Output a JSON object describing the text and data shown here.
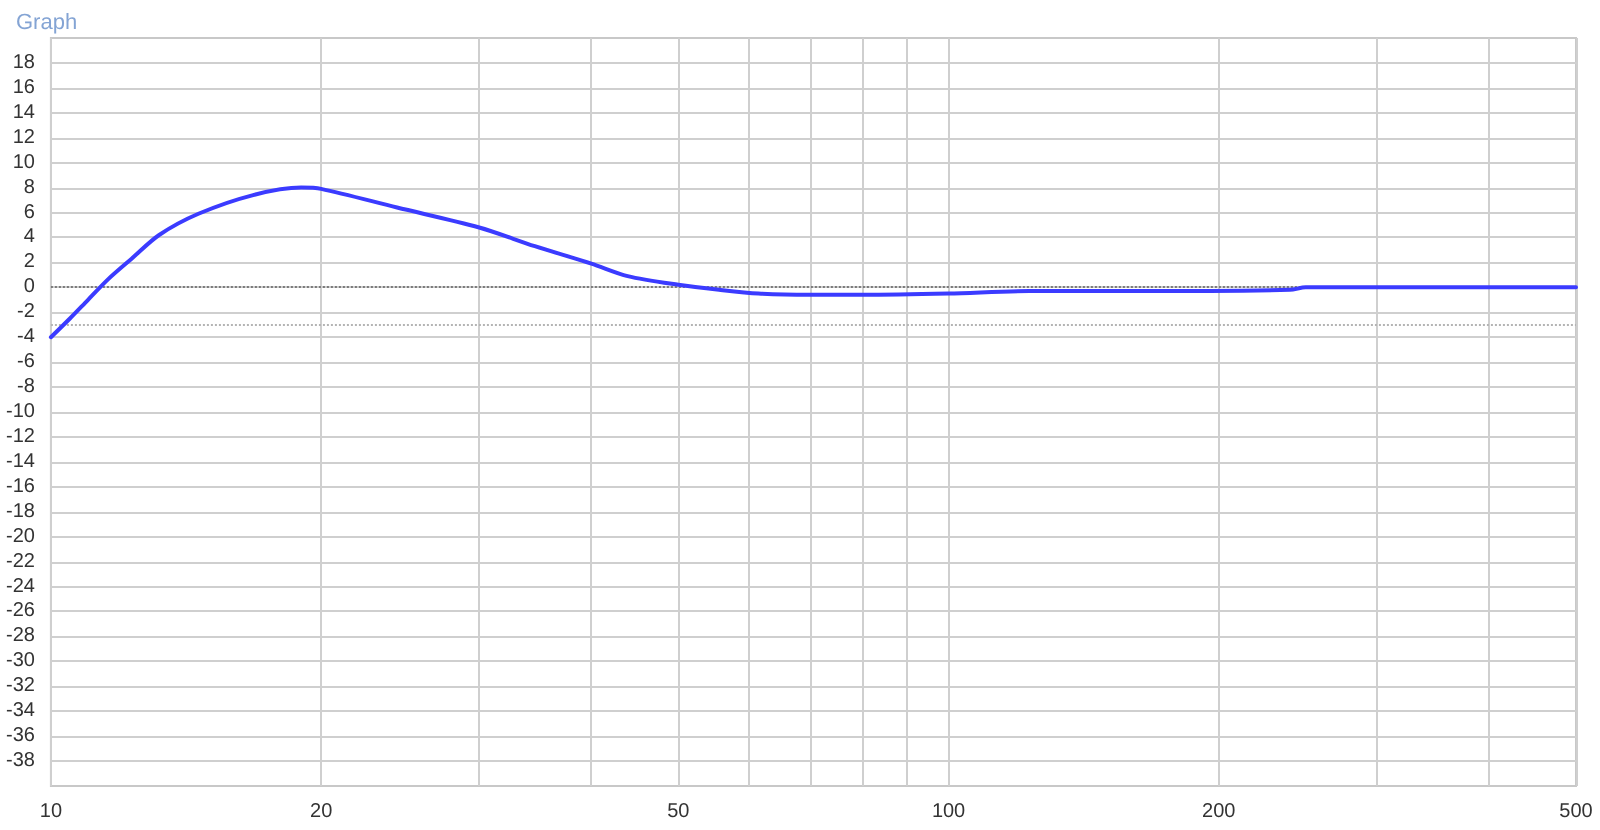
{
  "chart_data": {
    "type": "line",
    "title": "Graph",
    "series": [
      {
        "color": "#3b3bff",
        "x": [
          10,
          10.5,
          11,
          11.6,
          12.3,
          13.2,
          14.6,
          16.8,
          19,
          20,
          24.3,
          30,
          34.6,
          40,
          43.9,
          50,
          55.5,
          61.4,
          70,
          80,
          100,
          123,
          160,
          240,
          250,
          500
        ],
        "values": [
          -4.0,
          -2.5,
          -1.0,
          0.7,
          2.3,
          4.2,
          5.9,
          7.4,
          8.0,
          7.9,
          6.4,
          4.8,
          3.3,
          1.9,
          0.9,
          0.2,
          -0.2,
          -0.5,
          -0.6,
          -0.6,
          -0.5,
          -0.3,
          -0.3,
          -0.2,
          0,
          0
        ]
      }
    ],
    "log": "x",
    "xlim": [
      10,
      500
    ],
    "xticks": [
      10,
      20,
      {
        "value": 30,
        "label": null
      },
      {
        "value": 40,
        "label": null
      },
      50,
      {
        "value": 60,
        "label": null
      },
      {
        "value": 70,
        "label": null
      },
      {
        "value": 80,
        "label": null
      },
      {
        "value": 90,
        "label": null
      },
      100,
      200,
      {
        "value": 300,
        "label": null
      },
      {
        "value": 400,
        "label": null
      },
      500
    ],
    "ylim": [
      -40,
      20
    ],
    "yticks": [
      -38,
      -36,
      -34,
      -32,
      -30,
      -28,
      -26,
      -24,
      -22,
      -20,
      -18,
      -16,
      -14,
      -12,
      -10,
      -8,
      -6,
      -4,
      -2,
      0,
      2,
      4,
      6,
      8,
      10,
      12,
      14,
      16,
      18
    ],
    "grid": true,
    "marker": "none",
    "line_style": "solid",
    "ref_lines": [
      {
        "axis": "y",
        "value": 0,
        "color": "#7a7a7a",
        "line_style": "dotted"
      },
      {
        "axis": "y",
        "value": -3,
        "color": "#b4b4b4",
        "line_style": "dotted"
      }
    ]
  }
}
